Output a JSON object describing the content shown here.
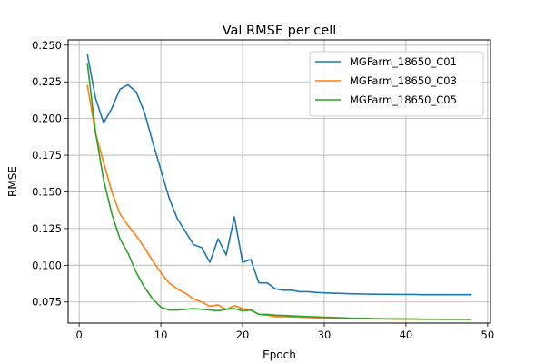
{
  "chart_data": {
    "type": "line",
    "title": "Val RMSE per cell",
    "xlabel": "Epoch",
    "ylabel": "RMSE",
    "xlim": [
      -1.35,
      50.35
    ],
    "ylim": [
      0.0606,
      0.2536
    ],
    "xticks": [
      0,
      10,
      20,
      30,
      40,
      50
    ],
    "xtick_labels": [
      "0",
      "10",
      "20",
      "30",
      "40",
      "50"
    ],
    "yticks": [
      0.075,
      0.1,
      0.125,
      0.15,
      0.175,
      0.2,
      0.225,
      0.25
    ],
    "ytick_labels": [
      "0.075",
      "0.100",
      "0.125",
      "0.150",
      "0.175",
      "0.200",
      "0.225",
      "0.250"
    ],
    "grid": true,
    "legend_position": "top-right",
    "series": [
      {
        "name": "MGFarm_18650_C01",
        "color": "#1f77b4",
        "x": [
          1,
          2,
          3,
          4,
          5,
          6,
          7,
          8,
          9,
          10,
          11,
          12,
          13,
          14,
          15,
          16,
          17,
          18,
          19,
          20,
          21,
          22,
          23,
          24,
          25,
          26,
          27,
          28,
          29,
          30,
          31,
          32,
          33,
          34,
          35,
          36,
          37,
          38,
          39,
          40,
          41,
          42,
          43,
          44,
          45,
          46,
          47,
          48
        ],
        "y": [
          0.244,
          0.214,
          0.197,
          0.207,
          0.22,
          0.223,
          0.218,
          0.204,
          0.184,
          0.165,
          0.146,
          0.132,
          0.123,
          0.114,
          0.112,
          0.102,
          0.118,
          0.107,
          0.133,
          0.102,
          0.104,
          0.088,
          0.088,
          0.084,
          0.083,
          0.083,
          0.082,
          0.082,
          0.0815,
          0.0812,
          0.081,
          0.0808,
          0.0806,
          0.0805,
          0.0804,
          0.0803,
          0.0802,
          0.0802,
          0.0801,
          0.0801,
          0.0801,
          0.08,
          0.08,
          0.08,
          0.08,
          0.08,
          0.08,
          0.08
        ]
      },
      {
        "name": "MGFarm_18650_C03",
        "color": "#ff7f0e",
        "x": [
          1,
          2,
          3,
          4,
          5,
          6,
          7,
          8,
          9,
          10,
          11,
          12,
          13,
          14,
          15,
          16,
          17,
          18,
          19,
          20,
          21,
          22,
          23,
          24,
          25,
          26,
          27,
          28,
          29,
          30,
          31,
          32,
          33,
          34,
          35,
          36,
          37,
          38,
          39,
          40,
          41,
          42,
          43,
          44,
          45,
          46,
          47,
          48
        ],
        "y": [
          0.223,
          0.19,
          0.17,
          0.15,
          0.135,
          0.127,
          0.12,
          0.112,
          0.103,
          0.095,
          0.088,
          0.084,
          0.081,
          0.077,
          0.075,
          0.072,
          0.073,
          0.07,
          0.0725,
          0.0705,
          0.0695,
          0.0665,
          0.066,
          0.065,
          0.065,
          0.0648,
          0.0646,
          0.0644,
          0.0642,
          0.064,
          0.0639,
          0.0638,
          0.0637,
          0.0636,
          0.0635,
          0.0635,
          0.0634,
          0.0634,
          0.0633,
          0.0633,
          0.0633,
          0.0632,
          0.0632,
          0.0632,
          0.0632,
          0.0632,
          0.0632,
          0.0632
        ]
      },
      {
        "name": "MGFarm_18650_C05",
        "color": "#2ca02c",
        "x": [
          1,
          2,
          3,
          4,
          5,
          6,
          7,
          8,
          9,
          10,
          11,
          12,
          13,
          14,
          15,
          16,
          17,
          18,
          19,
          20,
          21,
          22,
          23,
          24,
          25,
          26,
          27,
          28,
          29,
          30,
          31,
          32,
          33,
          34,
          35,
          36,
          37,
          38,
          39,
          40,
          41,
          42,
          43,
          44,
          45,
          46,
          47,
          48
        ],
        "y": [
          0.238,
          0.191,
          0.158,
          0.135,
          0.118,
          0.108,
          0.095,
          0.085,
          0.077,
          0.0715,
          0.0695,
          0.0695,
          0.07,
          0.0705,
          0.07,
          0.0695,
          0.069,
          0.07,
          0.0705,
          0.069,
          0.0695,
          0.0665,
          0.0665,
          0.066,
          0.0658,
          0.0655,
          0.0653,
          0.065,
          0.0648,
          0.0646,
          0.0644,
          0.0642,
          0.064,
          0.0639,
          0.0638,
          0.0637,
          0.0636,
          0.0635,
          0.0635,
          0.0634,
          0.0634,
          0.0633,
          0.0633,
          0.0633,
          0.0632,
          0.0632,
          0.0632,
          0.0632
        ]
      }
    ]
  }
}
